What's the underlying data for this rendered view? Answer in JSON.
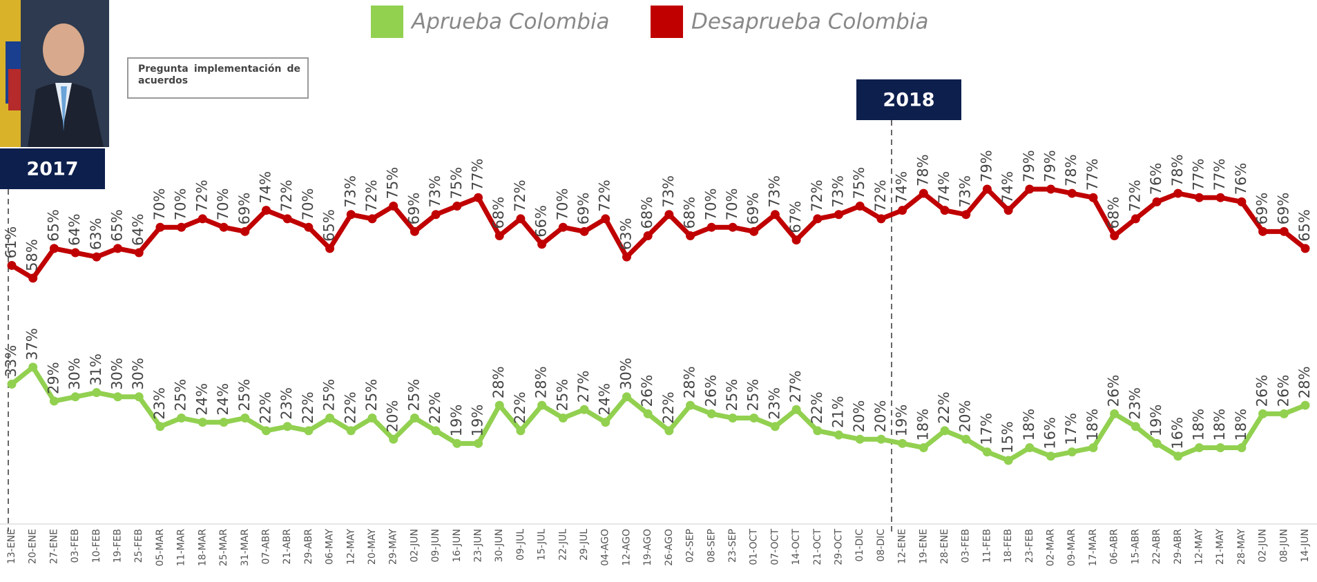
{
  "chart_data": {
    "type": "line",
    "legend_items_note_free": true,
    "annotations": {
      "year_2017": "2017",
      "year_2018": "2018",
      "question": "Pregunta implementación de acuerdos"
    },
    "categories": [
      "13-ENE",
      "20-ENE",
      "27-ENE",
      "03-FEB",
      "10-FEB",
      "19-FEB",
      "25-FEB",
      "05-MAR",
      "11-MAR",
      "18-MAR",
      "25-MAR",
      "31-MAR",
      "07-ABR",
      "21-ABR",
      "29-ABR",
      "06-MAY",
      "12-MAY",
      "20-MAY",
      "29-MAY",
      "02-JUN",
      "09-JUN",
      "16-JUN",
      "23-JUN",
      "30-JUN",
      "09-JUL",
      "15-JUL",
      "22-JUL",
      "29-JUL",
      "04-AGO",
      "12-AGO",
      "19-AGO",
      "26-AGO",
      "02-SEP",
      "08-SEP",
      "23-SEP",
      "01-OCT",
      "07-OCT",
      "14-OCT",
      "21-OCT",
      "29-OCT",
      "01-DIC",
      "08-DIC",
      "12-ENE",
      "19-ENE",
      "28-ENE",
      "03-FEB",
      "11-FEB",
      "18-FEB",
      "23-FEB",
      "02-MAR",
      "09-MAR",
      "17-MAR",
      "06-ABR",
      "15-ABR",
      "22-ABR",
      "29-ABR",
      "12-MAY",
      "21-MAY",
      "28-MAY",
      "02-JUN",
      "08-JUN",
      "14-JUN"
    ],
    "series": [
      {
        "name": "Aprueba Colombia",
        "color": "#92d050",
        "values": [
          33,
          37,
          29,
          30,
          31,
          30,
          30,
          23,
          25,
          24,
          24,
          25,
          22,
          23,
          22,
          25,
          22,
          25,
          20,
          25,
          22,
          19,
          19,
          28,
          22,
          28,
          25,
          27,
          24,
          30,
          26,
          22,
          28,
          26,
          25,
          25,
          23,
          27,
          22,
          21,
          20,
          20,
          19,
          18,
          22,
          20,
          17,
          15,
          18,
          16,
          17,
          18,
          26,
          23,
          19,
          16,
          18,
          18,
          18,
          26,
          26,
          28
        ],
        "value_labels": [
          "33%",
          "37%",
          "29%",
          "30%",
          "31%",
          "30%",
          "30%",
          "23%",
          "25%",
          "24%",
          "24%",
          "25%",
          "22%",
          "23%",
          "22%",
          "25%",
          "22%",
          "25%",
          "20%",
          "25%",
          "22%",
          "19%",
          "19%",
          "28%",
          "22%",
          "28%",
          "25%",
          "27%",
          "24%",
          "30%",
          "26%",
          "22%",
          "28%",
          "26%",
          "25%",
          "25%",
          "23%",
          "27%",
          "22%",
          "21%",
          "20%",
          "20%",
          "19%",
          "18%",
          "22%",
          "20%",
          "17%",
          "15%",
          "18%",
          "16%",
          "17%",
          "18%",
          "26%",
          "23%",
          "19%",
          "16%",
          "18%",
          "18%",
          "18%",
          "26%",
          "26%",
          "28%"
        ]
      },
      {
        "name": "Desaprueba Colombia",
        "color": "#c00000",
        "values": [
          61,
          58,
          65,
          64,
          63,
          65,
          64,
          70,
          70,
          72,
          70,
          69,
          74,
          72,
          70,
          65,
          73,
          72,
          75,
          69,
          73,
          75,
          77,
          68,
          72,
          66,
          70,
          69,
          72,
          63,
          68,
          73,
          68,
          70,
          70,
          69,
          73,
          67,
          72,
          73,
          75,
          72,
          74,
          78,
          74,
          73,
          79,
          74,
          79,
          79,
          78,
          77,
          68,
          72,
          76,
          78,
          77,
          77,
          76,
          69,
          69,
          65
        ],
        "value_labels": [
          "61%",
          "58%",
          "65%",
          "64%",
          "63%",
          "65%",
          "64%",
          "70%",
          "70%",
          "72%",
          "70%",
          "69%",
          "74%",
          "72%",
          "70%",
          "65%",
          "73%",
          "72%",
          "75%",
          "69%",
          "73%",
          "75%",
          "77%",
          "68%",
          "72%",
          "66%",
          "70%",
          "69%",
          "72%",
          "63%",
          "68%",
          "73%",
          "68%",
          "70%",
          "70%",
          "69%",
          "73%",
          "67%",
          "72%",
          "73%",
          "75%",
          "72%",
          "74%",
          "78%",
          "74%",
          "73%",
          "79%",
          "74%",
          "79%",
          "79%",
          "78%",
          "77%",
          "68%",
          "72%",
          "76%",
          "78%",
          "77%",
          "77%",
          "76%",
          "69%",
          "69%",
          "65%"
        ]
      }
    ],
    "ylim": [
      0,
      100
    ]
  }
}
